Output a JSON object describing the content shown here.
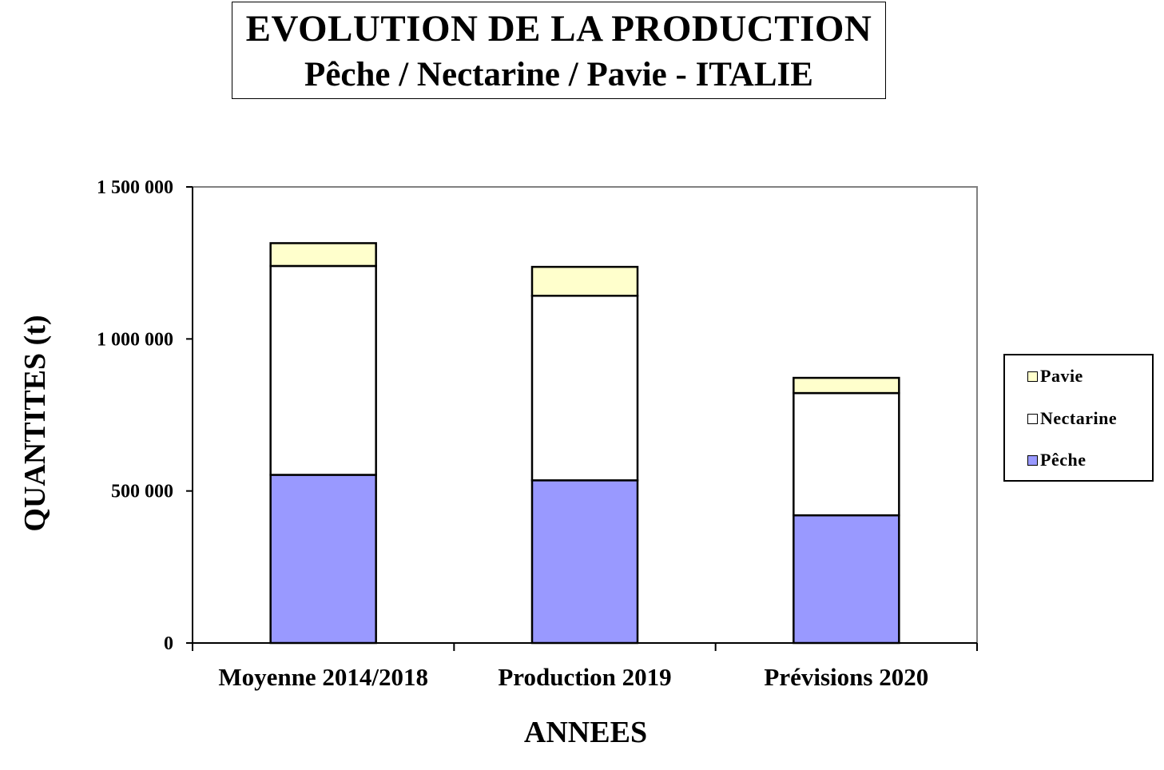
{
  "chart_data": {
    "type": "bar",
    "stacked": true,
    "title": "EVOLUTION  DE LA PRODUCTION",
    "subtitle": "Pêche / Nectarine / Pavie - ITALIE",
    "xlabel": "ANNEES",
    "ylabel": "QUANTITES (t)",
    "ylim": [
      0,
      1500000
    ],
    "yticks": [
      0,
      500000,
      1000000,
      1500000
    ],
    "ytick_labels": [
      "0",
      "500 000",
      "1 000 000",
      "1 500 000"
    ],
    "categories": [
      "Moyenne 2014/2018",
      "Production 2019",
      "Prévisions 2020"
    ],
    "series": [
      {
        "name": "Pêche",
        "color": "#9999ff",
        "values": [
          553000,
          535000,
          420000
        ]
      },
      {
        "name": "Nectarine",
        "color": "#ffffff",
        "values": [
          687000,
          607000,
          402000
        ]
      },
      {
        "name": "Pavie",
        "color": "#ffffcc",
        "values": [
          75000,
          95000,
          50000
        ]
      }
    ],
    "legend": {
      "position": "right",
      "order": [
        "Pavie",
        "Nectarine",
        "Pêche"
      ]
    },
    "grid": false
  }
}
